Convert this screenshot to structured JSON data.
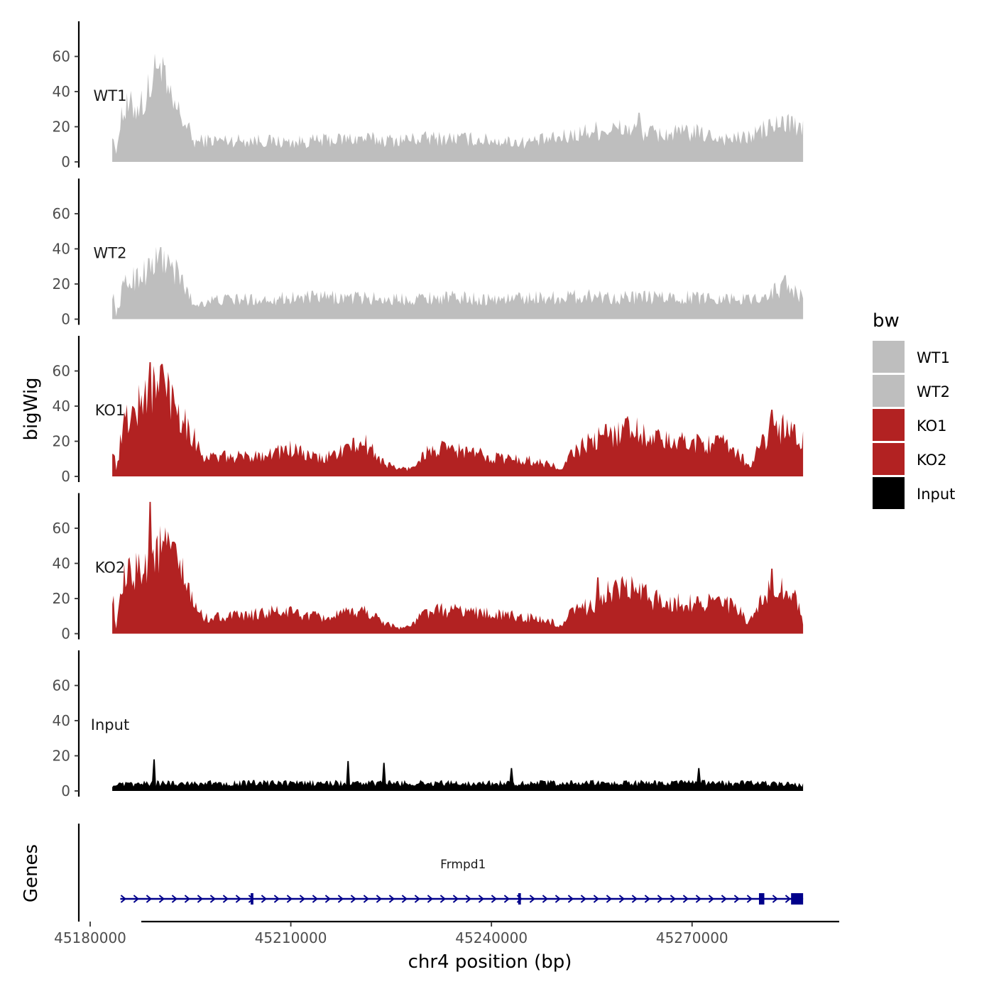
{
  "chart_data": {
    "type": "area",
    "ylabel": "bigWig",
    "genes_label": "Genes",
    "xlabel": "chr4 position (bp)",
    "x_range": [
      45178300,
      45292000
    ],
    "data_range": [
      45183300,
      45286600
    ],
    "x_ticks": [
      45180000,
      45210000,
      45240000,
      45270000
    ],
    "x_tick_labels": [
      "45180000",
      "45210000",
      "45240000",
      "45270000"
    ],
    "y_range": [
      0,
      80
    ],
    "y_ticks": [
      0,
      20,
      40,
      60
    ],
    "y_tick_labels": [
      "0",
      "20",
      "40",
      "60"
    ],
    "tracks": [
      {
        "name": "WT1",
        "color": "#bebebe",
        "profile": [
          [
            45183300,
            18
          ],
          [
            45183900,
            3
          ],
          [
            45184500,
            24
          ],
          [
            45185500,
            27
          ],
          [
            45186500,
            28
          ],
          [
            45187500,
            30
          ],
          [
            45188500,
            33
          ],
          [
            45189300,
            42
          ],
          [
            45190200,
            48
          ],
          [
            45191000,
            40
          ],
          [
            45192000,
            30
          ],
          [
            45193500,
            24
          ],
          [
            45194500,
            18
          ],
          [
            45195500,
            10
          ],
          [
            45197000,
            11
          ],
          [
            45200000,
            11
          ],
          [
            45205000,
            11
          ],
          [
            45210000,
            10
          ],
          [
            45215000,
            11
          ],
          [
            45220000,
            12
          ],
          [
            45225000,
            11
          ],
          [
            45230000,
            12
          ],
          [
            45235000,
            12
          ],
          [
            45240000,
            11
          ],
          [
            45245000,
            10
          ],
          [
            45250000,
            12
          ],
          [
            45255000,
            16
          ],
          [
            45260000,
            17
          ],
          [
            45265000,
            14
          ],
          [
            45270000,
            15
          ],
          [
            45275000,
            12
          ],
          [
            45278000,
            12
          ],
          [
            45281000,
            17
          ],
          [
            45284000,
            20
          ],
          [
            45286600,
            16
          ]
        ],
        "peaks": [
          [
            45191200,
            55
          ],
          [
            45190200,
            53
          ],
          [
            45262000,
            28
          ],
          [
            45285000,
            26
          ]
        ]
      },
      {
        "name": "WT2",
        "color": "#bebebe",
        "profile": [
          [
            45183300,
            15
          ],
          [
            45183900,
            2
          ],
          [
            45185000,
            17
          ],
          [
            45186500,
            21
          ],
          [
            45188000,
            24
          ],
          [
            45189500,
            28
          ],
          [
            45191000,
            30
          ],
          [
            45192500,
            25
          ],
          [
            45194000,
            18
          ],
          [
            45195500,
            7
          ],
          [
            45197000,
            9
          ],
          [
            45200000,
            10
          ],
          [
            45205000,
            10
          ],
          [
            45210000,
            11
          ],
          [
            45215000,
            11
          ],
          [
            45220000,
            11
          ],
          [
            45225000,
            10
          ],
          [
            45230000,
            11
          ],
          [
            45235000,
            11
          ],
          [
            45240000,
            10
          ],
          [
            45245000,
            11
          ],
          [
            45250000,
            11
          ],
          [
            45255000,
            12
          ],
          [
            45260000,
            11
          ],
          [
            45265000,
            11
          ],
          [
            45270000,
            11
          ],
          [
            45275000,
            11
          ],
          [
            45278000,
            10
          ],
          [
            45281000,
            12
          ],
          [
            45284000,
            17
          ],
          [
            45286600,
            11
          ]
        ],
        "peaks": [
          [
            45190500,
            41
          ],
          [
            45284000,
            25
          ]
        ]
      },
      {
        "name": "KO1",
        "color": "#b22222",
        "profile": [
          [
            45183300,
            17
          ],
          [
            45183900,
            4
          ],
          [
            45185000,
            27
          ],
          [
            45186500,
            33
          ],
          [
            45188000,
            39
          ],
          [
            45189500,
            45
          ],
          [
            45191000,
            46
          ],
          [
            45192500,
            40
          ],
          [
            45194000,
            30
          ],
          [
            45195500,
            20
          ],
          [
            45197000,
            10
          ],
          [
            45200000,
            10
          ],
          [
            45203000,
            10
          ],
          [
            45207000,
            12
          ],
          [
            45210000,
            14
          ],
          [
            45213000,
            10
          ],
          [
            45215000,
            9
          ],
          [
            45218000,
            14
          ],
          [
            45221000,
            17
          ],
          [
            45224000,
            7
          ],
          [
            45226000,
            4
          ],
          [
            45228000,
            4
          ],
          [
            45230000,
            12
          ],
          [
            45233000,
            14
          ],
          [
            45236000,
            13
          ],
          [
            45240000,
            10
          ],
          [
            45243000,
            9
          ],
          [
            45246000,
            8
          ],
          [
            45249000,
            6
          ],
          [
            45250500,
            3
          ],
          [
            45252000,
            12
          ],
          [
            45255000,
            18
          ],
          [
            45258000,
            22
          ],
          [
            45261000,
            25
          ],
          [
            45264000,
            20
          ],
          [
            45267000,
            17
          ],
          [
            45270000,
            18
          ],
          [
            45273000,
            17
          ],
          [
            45275000,
            16
          ],
          [
            45277000,
            12
          ],
          [
            45278500,
            5
          ],
          [
            45280000,
            14
          ],
          [
            45282000,
            25
          ],
          [
            45284000,
            24
          ],
          [
            45286600,
            18
          ]
        ],
        "peaks": [
          [
            45189000,
            65
          ],
          [
            45190800,
            64
          ],
          [
            45260000,
            33
          ],
          [
            45282000,
            38
          ]
        ]
      },
      {
        "name": "KO2",
        "color": "#b22222",
        "profile": [
          [
            45183300,
            22
          ],
          [
            45183900,
            3
          ],
          [
            45185000,
            27
          ],
          [
            45186500,
            31
          ],
          [
            45188000,
            36
          ],
          [
            45189500,
            42
          ],
          [
            45191000,
            43
          ],
          [
            45192500,
            40
          ],
          [
            45194000,
            28
          ],
          [
            45195500,
            15
          ],
          [
            45197000,
            8
          ],
          [
            45200000,
            9
          ],
          [
            45203000,
            9
          ],
          [
            45207000,
            11
          ],
          [
            45210000,
            11
          ],
          [
            45213000,
            9
          ],
          [
            45215000,
            8
          ],
          [
            45218000,
            10
          ],
          [
            45221000,
            12
          ],
          [
            45224000,
            6
          ],
          [
            45226000,
            3
          ],
          [
            45228000,
            4
          ],
          [
            45230000,
            11
          ],
          [
            45233000,
            12
          ],
          [
            45236000,
            12
          ],
          [
            45240000,
            10
          ],
          [
            45243000,
            9
          ],
          [
            45246000,
            8
          ],
          [
            45249000,
            6
          ],
          [
            45250500,
            3
          ],
          [
            45252000,
            11
          ],
          [
            45255000,
            15
          ],
          [
            45258000,
            22
          ],
          [
            45261000,
            23
          ],
          [
            45264000,
            18
          ],
          [
            45267000,
            16
          ],
          [
            45270000,
            16
          ],
          [
            45273000,
            17
          ],
          [
            45275000,
            15
          ],
          [
            45277000,
            12
          ],
          [
            45278500,
            5
          ],
          [
            45280000,
            14
          ],
          [
            45282000,
            24
          ],
          [
            45284000,
            24
          ],
          [
            45286000,
            15
          ],
          [
            45286600,
            5
          ]
        ],
        "peaks": [
          [
            45189000,
            75
          ],
          [
            45191500,
            50
          ],
          [
            45256000,
            32
          ],
          [
            45282000,
            37
          ]
        ]
      },
      {
        "name": "Input",
        "color": "#000000",
        "profile": [
          [
            45183300,
            3
          ],
          [
            45190000,
            4
          ],
          [
            45200000,
            4
          ],
          [
            45210000,
            4
          ],
          [
            45220000,
            4
          ],
          [
            45230000,
            4
          ],
          [
            45240000,
            4
          ],
          [
            45250000,
            4
          ],
          [
            45260000,
            4
          ],
          [
            45270000,
            4
          ],
          [
            45280000,
            4
          ],
          [
            45286600,
            3
          ]
        ],
        "peaks": [
          [
            45189500,
            18
          ],
          [
            45218500,
            17
          ],
          [
            45224000,
            16
          ],
          [
            45243000,
            13
          ],
          [
            45271000,
            13
          ]
        ]
      }
    ],
    "legend": {
      "title": "bw",
      "position": "right",
      "entries": [
        {
          "label": "WT1",
          "color": "#bebebe"
        },
        {
          "label": "WT2",
          "color": "#bebebe"
        },
        {
          "label": "KO1",
          "color": "#b22222"
        },
        {
          "label": "KO2",
          "color": "#b22222"
        },
        {
          "label": "Input",
          "color": "#000000"
        }
      ]
    },
    "gene": {
      "name": "Frmpd1",
      "color": "#00008b",
      "strand": "+",
      "start": 45184500,
      "end": 45286600,
      "exons": [
        [
          45204000,
          45204400
        ],
        [
          45244000,
          45244400
        ],
        [
          45280000,
          45280800
        ],
        [
          45284800,
          45286600
        ]
      ]
    }
  }
}
